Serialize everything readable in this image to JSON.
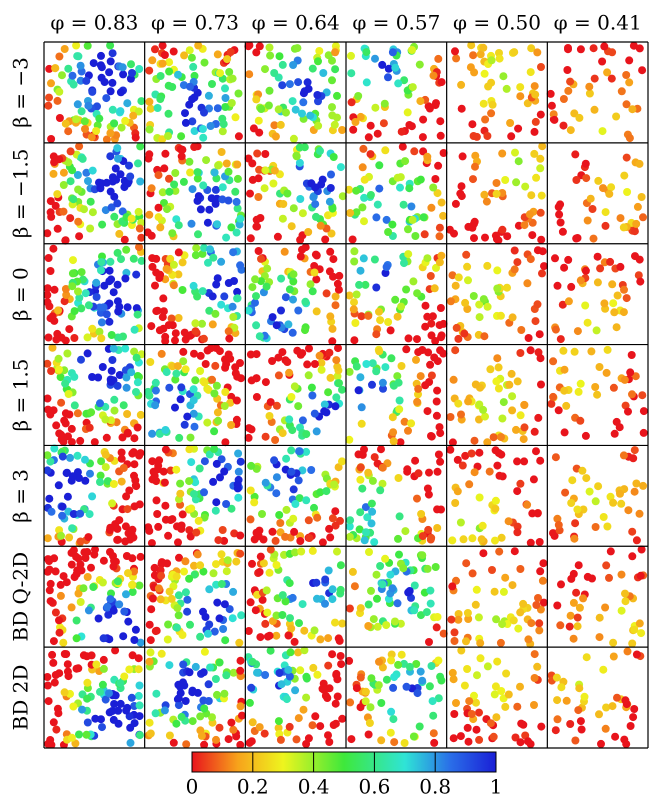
{
  "column_headers": [
    "φ = 0.83",
    "φ = 0.73",
    "φ = 0.64",
    "φ = 0.57",
    "φ = 0.50",
    "φ = 0.41"
  ],
  "row_labels": [
    "β = −3",
    "β = −1.5",
    "β = 0",
    "β = 1.5",
    "β = 3",
    "BD Q-2D",
    "BD 2D"
  ],
  "colorbar": {
    "lim": [
      0,
      1
    ],
    "ticks": [
      0,
      0.2,
      0.4,
      0.6,
      0.8,
      1
    ]
  }
}
